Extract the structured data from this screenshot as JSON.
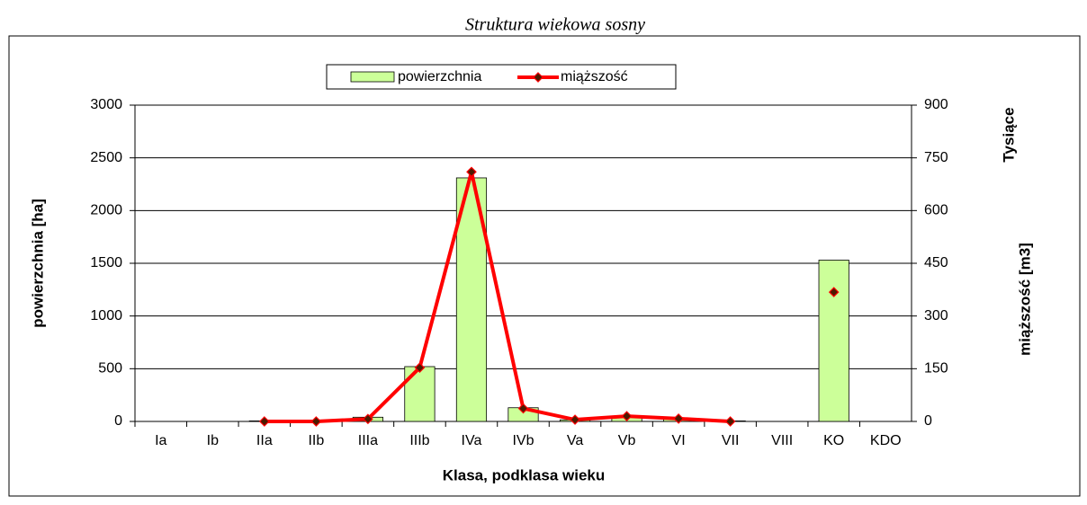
{
  "chart_data": {
    "type": "bar-line",
    "title": "Struktura wiekowa sosny",
    "categories": [
      "Ia",
      "Ib",
      "IIa",
      "IIb",
      "IIIa",
      "IIIb",
      "IVa",
      "IVb",
      "Va",
      "Vb",
      "VI",
      "VII",
      "VIII",
      "KO",
      "KDO"
    ],
    "series": [
      {
        "name": "powierzchnia",
        "type": "bar",
        "color": "#ccff99",
        "values": [
          0,
          0,
          5,
          5,
          40,
          520,
          2310,
          130,
          15,
          50,
          30,
          5,
          0,
          1530,
          0
        ]
      },
      {
        "name": "miąższość",
        "type": "line",
        "axis": "y2",
        "color": "#ff0000",
        "values": [
          null,
          null,
          0,
          0,
          7,
          153,
          710,
          37,
          5,
          15,
          8,
          0,
          null,
          368,
          null
        ]
      }
    ],
    "xlabel": "Klasa, podklasa wieku",
    "ylabel": "powierzchnia [ha]",
    "y2label": "miąższość  [m3]",
    "y2unit": "Tysiące",
    "ylim": [
      0,
      3000
    ],
    "yticks": [
      0,
      500,
      1000,
      1500,
      2000,
      2500,
      3000
    ],
    "y2lim": [
      0,
      900
    ],
    "y2ticks": [
      0,
      150,
      300,
      450,
      600,
      750,
      900
    ],
    "grid": true,
    "legend": "top"
  }
}
